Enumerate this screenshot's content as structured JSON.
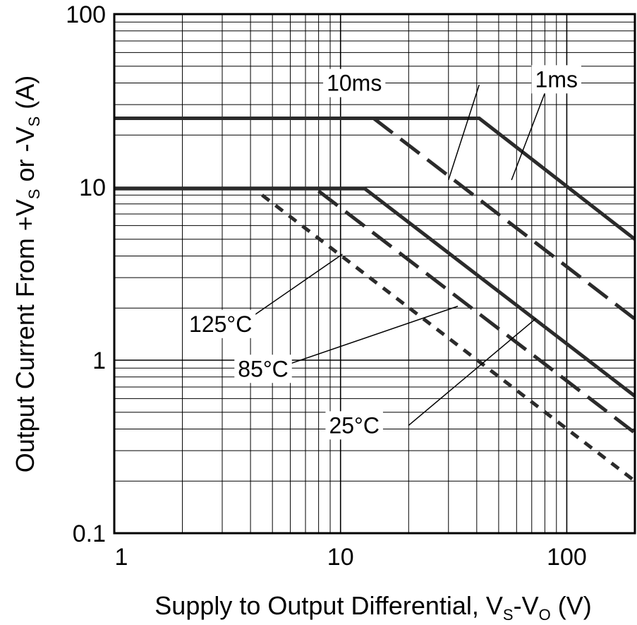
{
  "chart_data": {
    "type": "line",
    "x_scale": "log",
    "y_scale": "log",
    "xlim": [
      1,
      200
    ],
    "ylim": [
      0.1,
      100
    ],
    "grid": true,
    "xlabel": {
      "main": "Supply to Output Differential, V",
      "sub1": "S",
      "mid": "-V",
      "sub2": "O",
      "end": " (V)"
    },
    "ylabel": {
      "pre": "Output Current From +V",
      "sub1": "S",
      "mid": " or -V",
      "sub2": "S",
      "end": " (A)"
    },
    "x_ticks": [
      {
        "value": 1,
        "label": "1"
      },
      {
        "value": 10,
        "label": "10"
      },
      {
        "value": 100,
        "label": "100"
      }
    ],
    "y_ticks": [
      {
        "value": 0.1,
        "label": "0.1"
      },
      {
        "value": 1,
        "label": "1"
      },
      {
        "value": 10,
        "label": "10"
      },
      {
        "value": 100,
        "label": "100"
      }
    ],
    "series": [
      {
        "name": "1ms",
        "style": "solid",
        "color": "#2b2b2b",
        "points": [
          [
            1,
            25
          ],
          [
            41,
            25
          ],
          [
            200,
            5.0
          ]
        ]
      },
      {
        "name": "10ms",
        "style": "dashed",
        "color": "#2b2b2b",
        "points": [
          [
            14,
            25
          ],
          [
            200,
            1.73
          ]
        ]
      },
      {
        "name": "25°C",
        "style": "solid",
        "color": "#2b2b2b",
        "points": [
          [
            1,
            9.8
          ],
          [
            12.8,
            9.8
          ],
          [
            200,
            0.62
          ]
        ]
      },
      {
        "name": "85°C",
        "style": "dashed",
        "color": "#2b2b2b",
        "points": [
          [
            8,
            9.5
          ],
          [
            200,
            0.38
          ]
        ]
      },
      {
        "name": "125°C",
        "style": "dotted",
        "color": "#2b2b2b",
        "points": [
          [
            4.5,
            9.0
          ],
          [
            200,
            0.2
          ]
        ]
      }
    ],
    "annotations": [
      {
        "text": "10ms",
        "text_at": [
          11.5,
          39
        ],
        "pointer_from": [
          41,
          39
        ],
        "pointer_to": [
          30,
          11
        ]
      },
      {
        "text": "1ms",
        "text_at": [
          90,
          41
        ],
        "pointer_from": [
          80,
          35
        ],
        "pointer_to": [
          57,
          11
        ]
      },
      {
        "text": "125°C",
        "text_at": [
          2.95,
          1.58
        ],
        "pointer_from": [
          3.55,
          1.58
        ],
        "pointer_to": [
          10.2,
          4.1
        ]
      },
      {
        "text": "85°C",
        "text_at": [
          4.55,
          0.87
        ],
        "pointer_from": [
          5.0,
          0.88
        ],
        "pointer_to": [
          33,
          2.05
        ]
      },
      {
        "text": "25°C",
        "text_at": [
          11.5,
          0.41
        ],
        "pointer_from": [
          20,
          0.42
        ],
        "pointer_to": [
          73,
          1.74
        ]
      }
    ]
  }
}
